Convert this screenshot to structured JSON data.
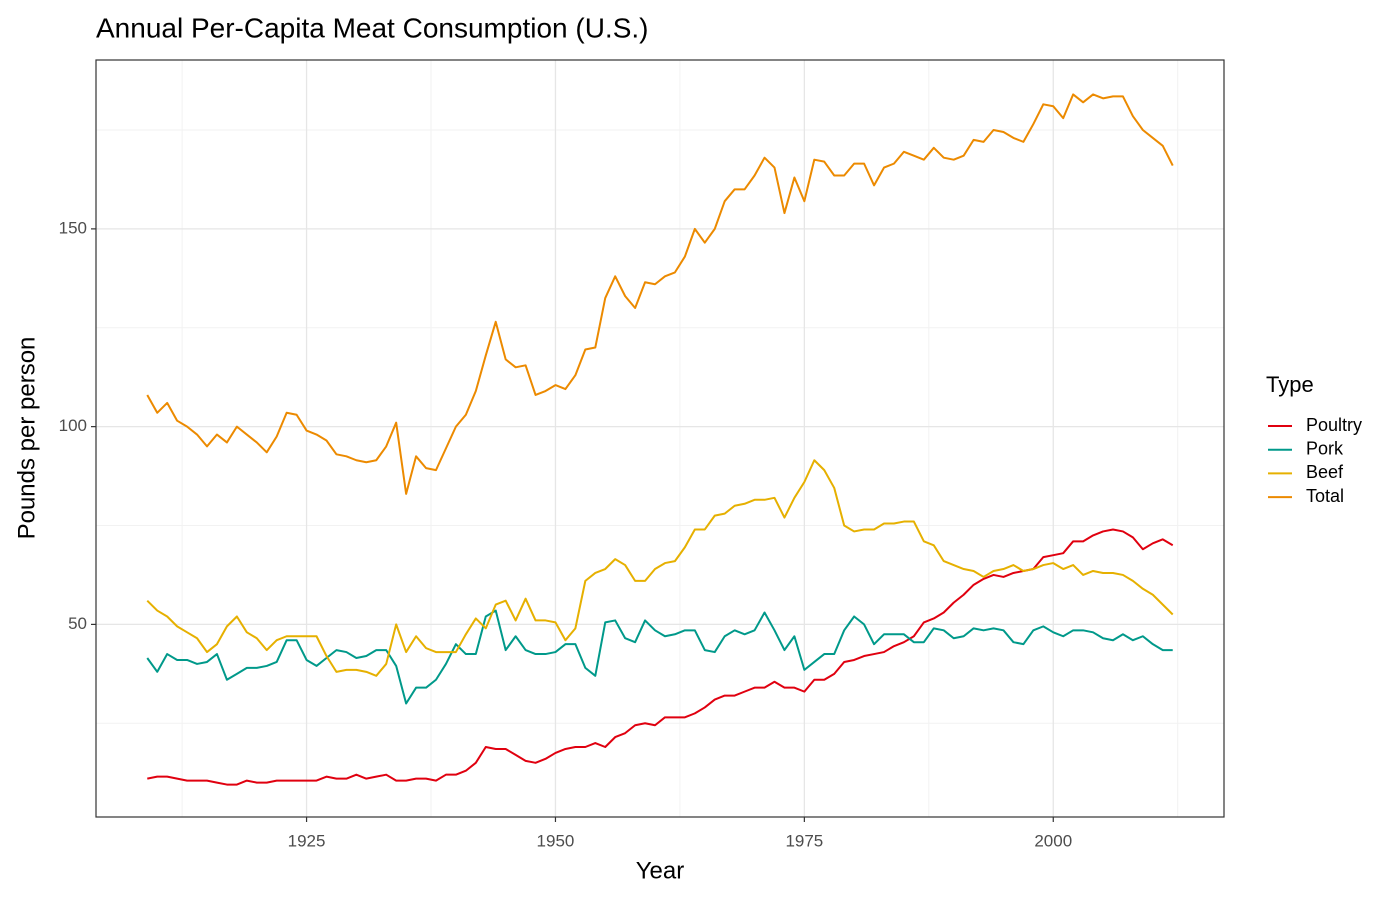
{
  "chart_data": {
    "type": "line",
    "title": "Annual Per-Capita Meat Consumption (U.S.)",
    "x_label": "Year",
    "y_label": "Pounds per person",
    "legend_title": "Type",
    "legend_position": "right",
    "grid": true,
    "xlim": [
      1903.85,
      2017.15
    ],
    "ylim": [
      1.3,
      192.7
    ],
    "xticks": [
      1925,
      1950,
      1975,
      2000
    ],
    "yticks": [
      50,
      100,
      150
    ],
    "xminorticks": [
      1912.5,
      1937.5,
      1962.5,
      1987.5,
      2012.5
    ],
    "yminorticks": [
      25,
      75,
      125,
      175
    ],
    "x": [
      1909,
      1910,
      1911,
      1912,
      1913,
      1914,
      1915,
      1916,
      1917,
      1918,
      1919,
      1920,
      1921,
      1922,
      1923,
      1924,
      1925,
      1926,
      1927,
      1928,
      1929,
      1930,
      1931,
      1932,
      1933,
      1934,
      1935,
      1936,
      1937,
      1938,
      1939,
      1940,
      1941,
      1942,
      1943,
      1944,
      1945,
      1946,
      1947,
      1948,
      1949,
      1950,
      1951,
      1952,
      1953,
      1954,
      1955,
      1956,
      1957,
      1958,
      1959,
      1960,
      1961,
      1962,
      1963,
      1964,
      1965,
      1966,
      1967,
      1968,
      1969,
      1970,
      1971,
      1972,
      1973,
      1974,
      1975,
      1976,
      1977,
      1978,
      1979,
      1980,
      1981,
      1982,
      1983,
      1984,
      1985,
      1986,
      1987,
      1988,
      1989,
      1990,
      1991,
      1992,
      1993,
      1994,
      1995,
      1996,
      1997,
      1998,
      1999,
      2000,
      2001,
      2002,
      2003,
      2004,
      2005,
      2006,
      2007,
      2008,
      2009,
      2010,
      2011,
      2012
    ],
    "series": [
      {
        "name": "Poultry",
        "color": "#e0000f",
        "values": [
          11,
          11.5,
          11.5,
          11,
          10.5,
          10.5,
          10.5,
          10,
          9.5,
          9.5,
          10.5,
          10,
          10,
          10.5,
          10.5,
          10.5,
          10.5,
          10.5,
          11.5,
          11,
          11,
          12,
          11,
          11.5,
          12,
          10.5,
          10.5,
          11,
          11,
          10.5,
          12,
          12,
          13,
          15,
          19,
          18.5,
          18.5,
          17,
          15.5,
          15,
          16,
          17.5,
          18.5,
          19,
          19,
          20,
          19,
          21.5,
          22.5,
          24.5,
          25,
          24.5,
          26.5,
          26.5,
          26.5,
          27.5,
          29,
          31,
          32,
          32,
          33,
          34,
          34,
          35.5,
          34,
          34,
          33,
          36,
          36,
          37.5,
          40.5,
          41,
          42,
          42.5,
          43,
          44.5,
          45.5,
          47,
          50.5,
          51.5,
          53,
          55.5,
          57.5,
          60,
          61.5,
          62.5,
          62,
          63,
          63.5,
          64,
          67,
          67.5,
          68,
          71,
          71,
          72.5,
          73.5,
          74,
          73.5,
          72,
          69,
          70.5,
          71.5,
          70
        ]
      },
      {
        "name": "Pork",
        "color": "#00998a",
        "values": [
          41.5,
          38,
          42.5,
          41,
          41,
          40,
          40.5,
          42.5,
          36,
          37.5,
          39,
          39,
          39.5,
          40.5,
          46,
          46,
          41,
          39.5,
          41.5,
          43.5,
          43,
          41.5,
          42,
          43.5,
          43.5,
          39.5,
          30,
          34,
          34,
          36,
          40,
          45,
          42.5,
          42.5,
          52,
          53.5,
          43.5,
          47,
          43.5,
          42.5,
          42.5,
          43,
          45,
          45,
          39,
          37,
          50.5,
          51,
          46.5,
          45.5,
          51,
          48.5,
          47,
          47.5,
          48.5,
          48.5,
          43.5,
          43,
          47,
          48.5,
          47.5,
          48.5,
          53,
          48.5,
          43.5,
          47,
          38.5,
          40.5,
          42.5,
          42.5,
          48.5,
          52,
          50,
          45,
          47.5,
          47.5,
          47.5,
          45.5,
          45.5,
          49,
          48.5,
          46.5,
          47,
          49,
          48.5,
          49,
          48.5,
          45.5,
          45,
          48.5,
          49.5,
          48,
          47,
          48.5,
          48.5,
          48,
          46.5,
          46,
          47.5,
          46,
          47,
          45,
          43.5,
          43.5
        ]
      },
      {
        "name": "Beef",
        "color": "#e6b000",
        "values": [
          56,
          53.5,
          52,
          49.5,
          48,
          46.5,
          43,
          45,
          49.5,
          52,
          48,
          46.5,
          43.5,
          46,
          47,
          47,
          47,
          47,
          42,
          38,
          38.5,
          38.5,
          38,
          37,
          40,
          50,
          43,
          47,
          44,
          43,
          43,
          43,
          47.5,
          51.5,
          49,
          55,
          56,
          51,
          56.5,
          51,
          51,
          50.5,
          46,
          49,
          61,
          63,
          64,
          66.5,
          65,
          61,
          61,
          64,
          65.5,
          66,
          69.5,
          74,
          74,
          77.5,
          78,
          80,
          80.5,
          81.5,
          81.5,
          82,
          77,
          82,
          86,
          91.5,
          89,
          84.5,
          75,
          73.5,
          74,
          74,
          75.5,
          75.5,
          76,
          76,
          71,
          70,
          66,
          65,
          64,
          63.5,
          62,
          63.5,
          64,
          65,
          63.5,
          64,
          65,
          65.5,
          64,
          65,
          62.5,
          63.5,
          63,
          63,
          62.5,
          61,
          59,
          57.5,
          55,
          52.5
        ]
      },
      {
        "name": "Total",
        "color": "#ec8a00",
        "values": [
          108,
          103.5,
          106,
          101.5,
          100,
          98,
          95,
          98,
          96,
          100,
          98,
          96,
          93.5,
          97.5,
          103.5,
          103,
          99,
          98,
          96.5,
          93,
          92.5,
          91.5,
          91,
          91.5,
          95,
          101,
          83,
          92.5,
          89.5,
          89,
          94.5,
          100,
          103,
          109,
          118,
          126.5,
          117,
          115,
          115.5,
          108,
          109,
          110.5,
          109.5,
          113,
          119.5,
          120,
          132.5,
          138,
          133,
          130,
          136.5,
          136,
          138,
          139,
          143,
          150,
          146.5,
          150,
          157,
          160,
          160,
          163.5,
          168,
          165.5,
          154,
          163,
          157,
          167.5,
          167,
          163.5,
          163.5,
          166.5,
          166.5,
          161,
          165.5,
          166.5,
          169.5,
          168.5,
          167.5,
          170.5,
          168,
          167.5,
          168.5,
          172.5,
          172,
          175,
          174.5,
          173,
          172,
          176.5,
          181.5,
          181,
          178,
          184,
          182,
          184,
          183,
          183.5,
          183.5,
          178.5,
          175,
          173,
          171,
          166
        ]
      }
    ]
  }
}
